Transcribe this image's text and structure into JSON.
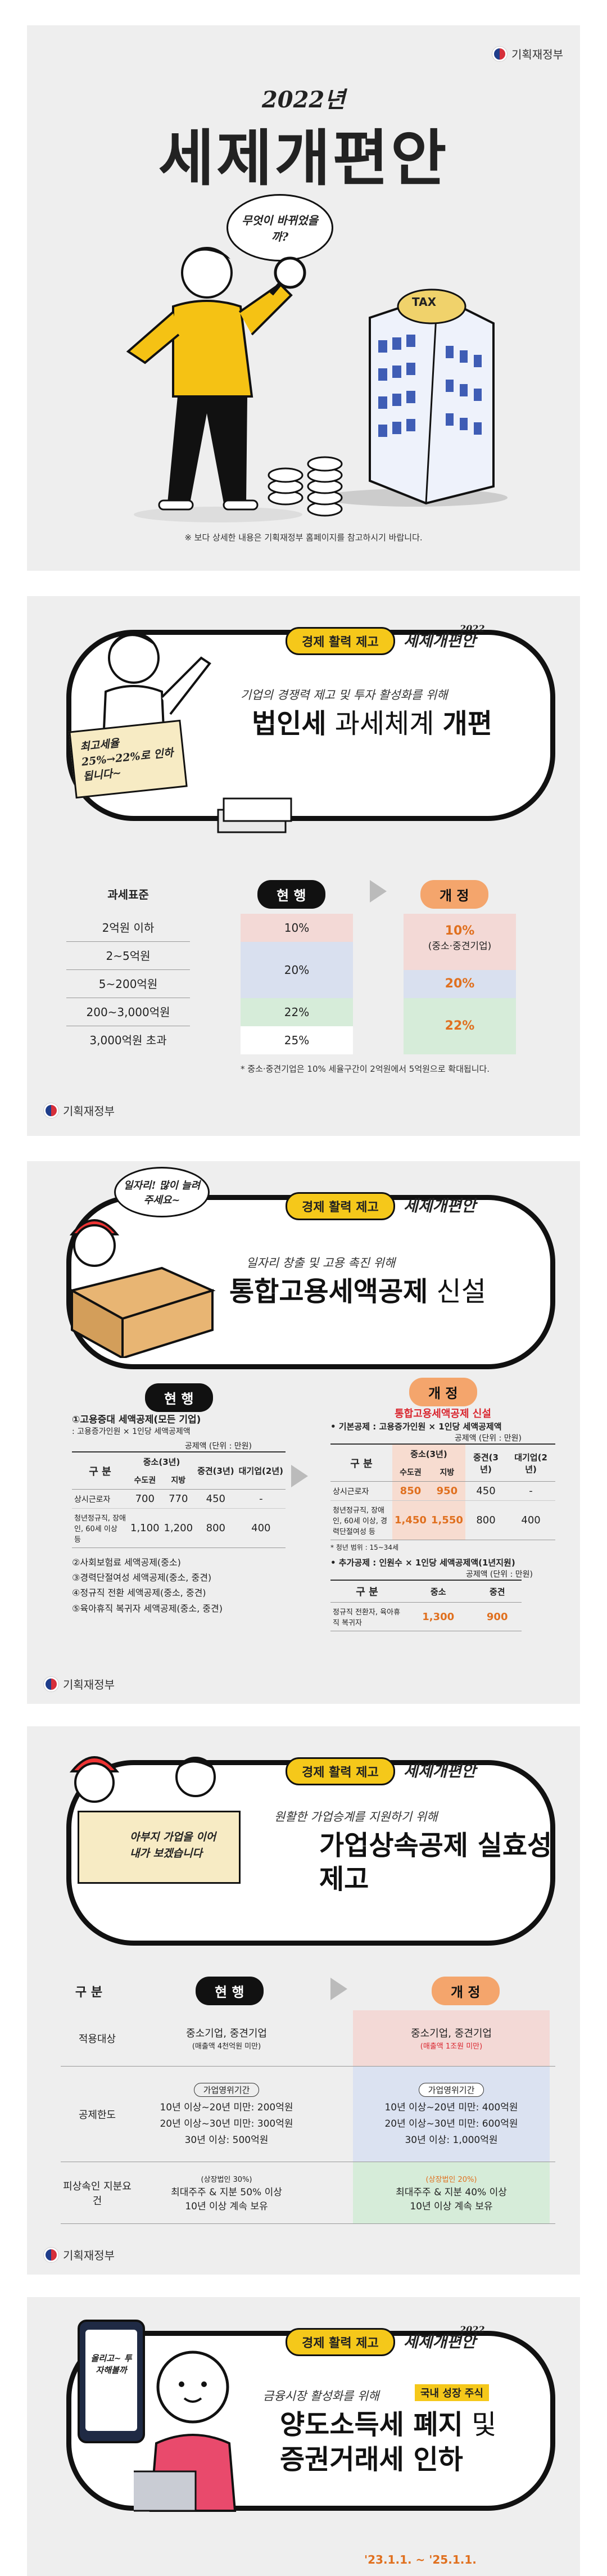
{
  "org": "기획재정부",
  "s1": {
    "year": "2022년",
    "title": "세제개편안",
    "thought": "무엇이 바뀌었을까?",
    "tax": "TAX",
    "note": "※ 보다 상세한 내용은 기획재정부 홈페이지를 참고하시기 바랍니다."
  },
  "common": {
    "tag": "경제 활력 제고",
    "brand": "세제개편안",
    "brand_year": "2022"
  },
  "s2": {
    "sign": "최고세율 25%→22%로 인하됩니다~",
    "sub": "기업의 경쟁력 제고 및 투자 활성화를 위해",
    "title_a": "법인세",
    "title_b": " 과세체계 ",
    "title_c": "개편",
    "col0": "과세표준",
    "col1": "현 행",
    "col2": "개 정",
    "rows": [
      "2억원 이하",
      "2~5억원",
      "5~200억원",
      "200~3,000억원",
      "3,000억원 초과"
    ],
    "cur": [
      "10%",
      "20%",
      "22%",
      "25%"
    ],
    "new_a": "10%",
    "new_a2": "(중소·중견기업)",
    "new_b": "20%",
    "new_c": "22%",
    "foot": "* 중소·중견기업은 10% 세율구간이 2억원에서 5억원으로 확대됩니다."
  },
  "s3": {
    "speech": "일자리! 많이 늘려주세요~",
    "sub": "일자리 창출 및 고용 촉진 위해",
    "title_a": "통합고용세액공제",
    "title_b": " 신설",
    "cur_btn": "현 행",
    "new_btn": "개 정",
    "left_l1": "①고용증대 세액공제(모든 기업)",
    "left_l2": ": 고용증가인원 × 1인당 세액공제액",
    "unit": "공제액 (단위 : 만원)",
    "gubun": "구 분",
    "h_small": "중소(3년)",
    "h_mid": "중견(3년)",
    "h_large": "대기업(2년)",
    "h_metro": "수도권",
    "h_local": "지방",
    "r1": "상시근로자",
    "r1v": [
      "700",
      "770",
      "450",
      "-"
    ],
    "r2": "청년정규직, 장애인, 60세 이상 등",
    "r2v": [
      "1,100",
      "1,200",
      "800",
      "400"
    ],
    "list": [
      "②사회보험료 세액공제(중소)",
      "③경력단절여성 세액공제(중소, 중견)",
      "④정규직 전환 세액공제(중소, 중견)",
      "⑤육아휴직 복귀자 세액공제(중소, 중견)"
    ],
    "new_head": "통합고용세액공제 신설",
    "basic": "• 기본공제 : 고용증가인원 × 1인당 세액공제액",
    "nr1v": [
      "850",
      "950",
      "450",
      "-"
    ],
    "nr2": "청년정규직, 장애인, 60세 이상, 경력단절여성 등",
    "nr2v": [
      "1,450",
      "1,550",
      "800",
      "400"
    ],
    "youth": "* 청년 범위 : 15~34세",
    "add": "• 추가공제 : 인원수 × 1인당 세액공제액(1년지원)",
    "add_small": "중소",
    "add_mid": "중견",
    "add_row": "정규직 전환자, 육아휴직 복귀자",
    "add_v": [
      "1,300",
      "900"
    ]
  },
  "s4": {
    "sign": "아부지 가업을 이어 내가 보겠습니다",
    "sub": "원활한 가업승계를 지원하기 위해",
    "title1": "가업상속공제 실효성",
    "title2": "제고",
    "gubun": "구 분",
    "cur": "현 행",
    "new": "개 정",
    "r1": "적용대상",
    "r1c": "중소기업, 중견기업",
    "r1c2": "(매출액 4천억원 미만)",
    "r1n": "중소기업, 중견기업",
    "r1n2": "(매출액 1조원 미만)",
    "r2": "공제한도",
    "period": "가업영위기간",
    "r2c": [
      "10년 이상~20년 미만: 200억원",
      "20년 이상~30년 미만: 300억원",
      "30년 이상: 500억원"
    ],
    "r2n": [
      "10년 이상~20년 미만: 400억원",
      "20년 이상~30년 미만: 600억원",
      "30년 이상: 1,000억원"
    ],
    "r3": "피상속인 지분요건",
    "r3c0": "(상장법인 30%)",
    "r3c": [
      "최대주주 & 지분 50% 이상",
      "10년 이상 계속 보유"
    ],
    "r3n0": "(상장법인 20%)",
    "r3n": [
      "최대주주 & 지분 40% 이상",
      "10년 이상 계속 보유"
    ]
  },
  "s5": {
    "sub": "금융시장 활성화를 위해",
    "badge": "국내 성장 주식",
    "title1": "양도소득세 폐지",
    "title1b": " 및",
    "title2": "증권거래세 인하",
    "phone": "올리고~ 투자해볼까",
    "years": "'23.1.1. ~ '25.1.1."
  }
}
